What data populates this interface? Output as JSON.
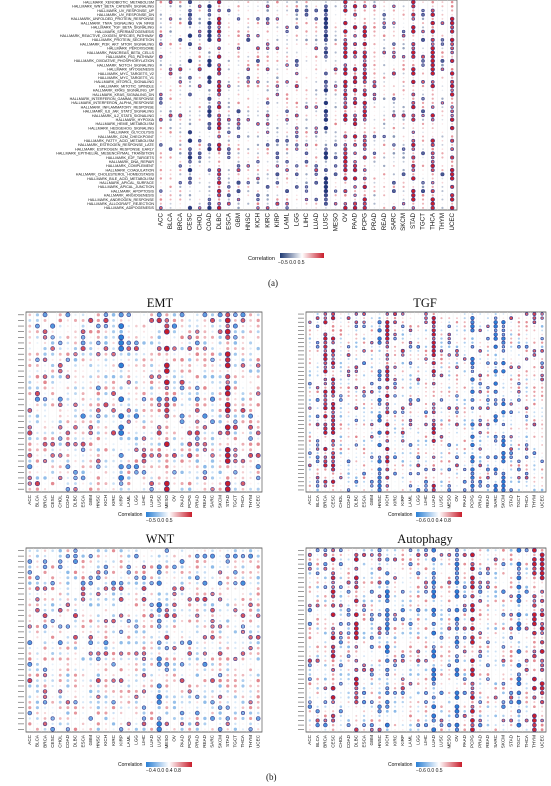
{
  "figure_labels": {
    "a": "(a)",
    "b": "(b)"
  },
  "legend_label": "Correlation",
  "panels": {
    "hallmark": {
      "title": "",
      "legend_ticks": "−0.5 0.0  0.5",
      "row_labels": [
        "HALLMARK_XENOBIOTIC_METABOLISM",
        "HALLMARK_WNT_BETA_CATENIN_SIGNALING",
        "HALLMARK_UV_RESPONSE_UP",
        "HALLMARK_UV_RESPONSE_DN",
        "HALLMARK_UNFOLDED_PROTEIN_RESPONSE",
        "HALLMARK_TNFA_SIGNALING_VIA_NFKB",
        "HALLMARK_TGF_BETA_SIGNALING",
        "HALLMARK_SPERMATOGENESIS",
        "HALLMARK_REACTIVE_OXIGEN_SPECIES_PATHWAY",
        "HALLMARK_PROTEIN_SECRETION",
        "HALLMARK_PI3K_AKT_MTOR_SIGNALING",
        "HALLMARK_PEROXISOME",
        "HALLMARK_PANCREAS_BETA_CELLS",
        "HALLMARK_P53_PATHWAY",
        "HALLMARK_OXIDATIVE_PHOSPHORYLATION",
        "HALLMARK_NOTCH_SIGNALING",
        "HALLMARK_MYOGENESIS",
        "HALLMARK_MYC_TARGETS_V2",
        "HALLMARK_MYC_TARGETS_V1",
        "HALLMARK_MTORC1_SIGNALING",
        "HALLMARK_MITOTIC_SPINDLE",
        "HALLMARK_KRAS_SIGNALING_UP",
        "HALLMARK_KRAS_SIGNALING_DN",
        "HALLMARK_INTERFERON_GAMMA_RESPONSE",
        "HALLMARK_INTERFERON_ALPHA_RESPONSE",
        "HALLMARK_INFLAMMATORY_RESPONSE",
        "HALLMARK_IL6_JAK_STAT3_SIGNALING",
        "HALLMARK_IL2_STAT5_SIGNALING",
        "HALLMARK_HYPOXIA",
        "HALLMARK_HEME_METABOLISM",
        "HALLMARK_HEDGEHOG_SIGNALING",
        "HALLMARK_GLYCOLYSIS",
        "HALLMARK_G2M_CHECKPOINT",
        "HALLMARK_FATTY_ACID_METABOLISM",
        "HALLMARK_ESTROGEN_RESPONSE_LATE",
        "HALLMARK_ESTROGEN_RESPONSE_EARLY",
        "HALLMARK_EPITHELIAL_MESENCHYMAL_TRANSITION",
        "HALLMARK_E2F_TARGETS",
        "HALLMARK_DNA_REPAIR",
        "HALLMARK_COMPLEMENT",
        "HALLMARK_COAGULATION",
        "HALLMARK_CHOLESTEROL_HOMEOSTASIS",
        "HALLMARK_BILE_ACID_METABOLISM",
        "HALLMARK_APICAL_SURFACE",
        "HALLMARK_APICAL_JUNCTION",
        "HALLMARK_APOPTOSIS",
        "HALLMARK_ANGIOGENESIS",
        "HALLMARK_ANDROGEN_RESPONSE",
        "HALLMARK_ALLOGRAFT_REJECTION",
        "HALLMARK_ADIPOGENESIS"
      ]
    },
    "emt": {
      "title": "EMT",
      "legend_ticks": "−0.5  0.0  0.5",
      "rows": 32
    },
    "tgf": {
      "title": "TGF",
      "legend_ticks": "−0.6 0.0 0.4  0.8",
      "rows": 44
    },
    "wnt": {
      "title": "WNT",
      "legend_ticks": "−0.4 0.0  0.4  0.8",
      "rows": 34
    },
    "autophagy": {
      "title": "Autophagy",
      "legend_ticks": "−0.6   0.0   0.5",
      "rows": 40
    }
  },
  "chart_data": {
    "type": "heatmap",
    "columns": [
      "ACC",
      "BLCA",
      "BRCA",
      "CESC",
      "CHOL",
      "COAD",
      "DLBC",
      "ESCA",
      "GBM",
      "HNSC",
      "KICH",
      "KIRC",
      "KIRP",
      "LAML",
      "LGG",
      "LIHC",
      "LUAD",
      "LUSC",
      "MESO",
      "OV",
      "PAAD",
      "PCPG",
      "PRAD",
      "READ",
      "SARC",
      "SKCM",
      "STAD",
      "TGCT",
      "THCA",
      "THYM",
      "UCEC"
    ],
    "value_range": [
      -1,
      1
    ],
    "colors": {
      "negative": "#1f3a73",
      "zero": "#ffffff",
      "positive": "#c81d2b",
      "significant_ring": "#3a3a8c"
    }
  }
}
